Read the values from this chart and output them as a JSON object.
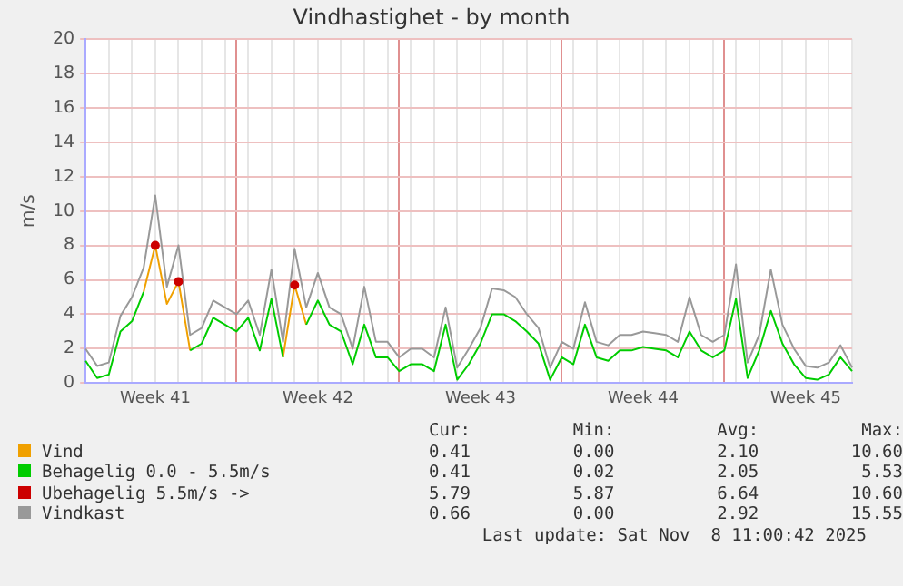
{
  "chart_data": {
    "type": "line",
    "title": "Vindhastighet - by month",
    "ylabel": "m/s",
    "categories": [
      null,
      null,
      null,
      null,
      null,
      null,
      "Week 41",
      null,
      null,
      null,
      null,
      null,
      null,
      null,
      null,
      null,
      null,
      null,
      null,
      null,
      "Week 42",
      null,
      null,
      null,
      null,
      null,
      null,
      null,
      null,
      null,
      null,
      null,
      null,
      null,
      "Week 43",
      null,
      null,
      null,
      null,
      null,
      null,
      null,
      null,
      null,
      null,
      null,
      null,
      null,
      "Week 44",
      null,
      null,
      null,
      null,
      null,
      null,
      null,
      null,
      null,
      null,
      null,
      null,
      null,
      "Week 45",
      null,
      null,
      null,
      null
    ],
    "series": [
      {
        "name": "Vindkast",
        "color": "#999999",
        "values": [
          2.0,
          1.0,
          1.2,
          3.9,
          5.0,
          6.7,
          10.9,
          5.6,
          8.0,
          2.8,
          3.2,
          4.8,
          4.4,
          4.0,
          4.8,
          2.8,
          6.6,
          2.4,
          7.8,
          4.4,
          6.4,
          4.4,
          4.0,
          2.0,
          5.6,
          2.4,
          2.4,
          1.5,
          2.0,
          2.0,
          1.5,
          4.4,
          0.9,
          2.0,
          3.2,
          5.5,
          5.4,
          5.0,
          4.0,
          3.2,
          0.9,
          2.4,
          2.0,
          4.7,
          2.4,
          2.2,
          2.8,
          2.8,
          3.0,
          2.9,
          2.8,
          2.4,
          5.0,
          2.8,
          2.4,
          2.8,
          6.9,
          1.2,
          2.8,
          6.6,
          3.4,
          2.0,
          1.0,
          0.9,
          1.2,
          2.2,
          0.9
        ]
      },
      {
        "name": "Vind",
        "color": "#f0a000",
        "values": [
          null,
          null,
          null,
          null,
          null,
          5.3,
          8.0,
          4.6,
          5.9,
          1.9,
          null,
          null,
          null,
          null,
          null,
          null,
          null,
          1.5,
          5.7,
          3.4,
          null,
          null,
          null,
          null,
          null,
          null,
          null,
          null,
          null,
          null,
          null,
          null,
          null,
          null,
          null,
          null,
          null,
          null,
          null,
          null,
          null,
          null,
          null,
          null,
          null,
          null,
          null,
          null,
          null,
          null,
          null,
          null,
          null,
          null,
          null,
          null,
          null,
          null,
          null,
          null,
          null,
          null,
          null,
          null,
          null,
          null,
          null
        ]
      },
      {
        "name": "Behagelig 0.0 - 5.5m/s",
        "color": "#00cc00",
        "values": [
          1.3,
          0.3,
          0.5,
          3.0,
          3.6,
          5.3,
          null,
          null,
          null,
          1.9,
          2.3,
          3.8,
          3.4,
          3.0,
          3.8,
          1.9,
          4.9,
          1.5,
          null,
          3.4,
          4.8,
          3.4,
          3.0,
          1.1,
          3.4,
          1.5,
          1.5,
          0.7,
          1.1,
          1.1,
          0.7,
          3.4,
          0.2,
          1.1,
          2.3,
          4.0,
          4.0,
          3.6,
          3.0,
          2.3,
          0.2,
          1.5,
          1.1,
          3.4,
          1.5,
          1.3,
          1.9,
          1.9,
          2.1,
          2.0,
          1.9,
          1.5,
          3.0,
          1.9,
          1.5,
          1.9,
          4.9,
          0.3,
          1.9,
          4.2,
          2.3,
          1.1,
          0.3,
          0.2,
          0.5,
          1.5,
          0.7
        ]
      },
      {
        "name": "Ubehagelig 5.5m/s ->",
        "color": "#cc0000",
        "type": "scatter",
        "values": [
          null,
          null,
          null,
          null,
          null,
          null,
          8.0,
          null,
          5.9,
          null,
          null,
          null,
          null,
          null,
          null,
          null,
          null,
          null,
          5.7,
          null,
          null,
          null,
          null,
          null,
          null,
          null,
          null,
          null,
          null,
          null,
          null,
          null,
          null,
          null,
          null,
          null,
          null,
          null,
          null,
          null,
          null,
          null,
          null,
          null,
          null,
          null,
          null,
          null,
          null,
          null,
          null,
          null,
          null,
          null,
          null,
          null,
          null,
          null,
          null,
          null,
          null,
          null,
          null,
          null,
          null,
          null,
          null
        ]
      }
    ],
    "ylim": [
      0,
      20
    ],
    "yticks": [
      0,
      2,
      4,
      6,
      8,
      10,
      12,
      14,
      16,
      18,
      20
    ],
    "grid": true,
    "legend": "bottom",
    "line_style": "solid",
    "annotations": [
      "Cur:",
      "Min:",
      "Avg:",
      "Max:",
      "0.41",
      "0.00",
      "2.10",
      "10.60",
      "0.41",
      "0.02",
      "2.05",
      "5.53",
      "5.79",
      "5.87",
      "6.64",
      "10.60",
      "0.66",
      "0.00",
      "2.92",
      "15.55",
      "Last update: Sat Nov  8 11:00:42 2025"
    ]
  }
}
